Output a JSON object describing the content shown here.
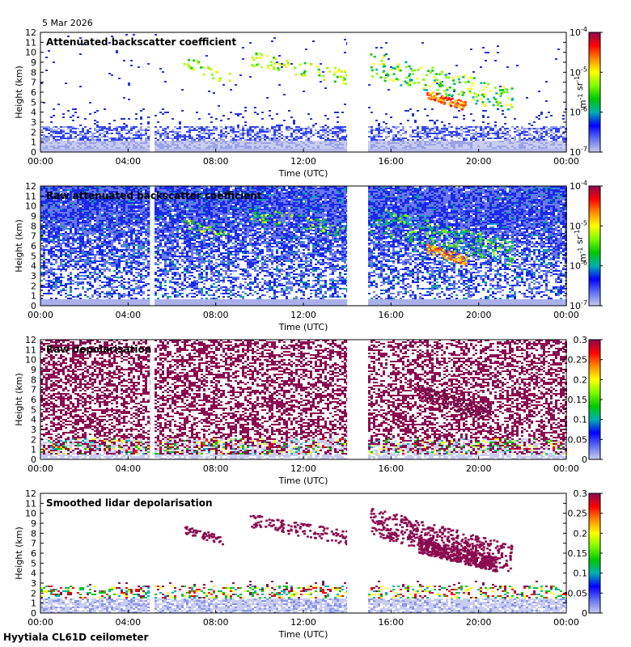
{
  "header": {
    "date": "5 Mar 2026"
  },
  "footer": {
    "site": "Hyytiala CL61D ceilometer"
  },
  "chart_data": [
    {
      "type": "heatmap",
      "title": "Attenuated backscatter coefficient",
      "xlabel": "Time (UTC)",
      "ylabel": "Height (km)",
      "x_ticks": [
        "00:00",
        "04:00",
        "08:00",
        "12:00",
        "16:00",
        "20:00",
        "00:00"
      ],
      "y_ticks": [
        "0",
        "1",
        "2",
        "3",
        "4",
        "5",
        "6",
        "7",
        "8",
        "9",
        "10",
        "11",
        "12"
      ],
      "xlim_hours": [
        0,
        24
      ],
      "ylim": [
        0,
        12
      ],
      "data_gaps_hours": [
        [
          5.0,
          5.2
        ],
        [
          14.0,
          14.9
        ]
      ],
      "colorbar": {
        "scale": "log",
        "range": [
          1e-07,
          0.0001
        ],
        "tick_labels": [
          "10-4",
          "10-5",
          "10-6",
          "10-7"
        ],
        "unit": "m-1 sr-1"
      },
      "features": {
        "cloud_layers": [
          {
            "start_h": 6.5,
            "end_h": 8.6,
            "base_km": 6.9,
            "top_km": 9.8
          },
          {
            "start_h": 9.5,
            "end_h": 14.0,
            "base_km": 6.8,
            "top_km": 10.2
          },
          {
            "start_h": 15.0,
            "end_h": 21.5,
            "base_km": 4.2,
            "top_km": 10.0
          }
        ],
        "boundary_layer_top_km": 2.5
      }
    },
    {
      "type": "heatmap",
      "title": "Raw attenuated backscatter coefficient",
      "xlabel": "Time (UTC)",
      "ylabel": "Height (km)",
      "x_ticks": [
        "00:00",
        "04:00",
        "08:00",
        "12:00",
        "16:00",
        "20:00",
        "00:00"
      ],
      "y_ticks": [
        "0",
        "1",
        "2",
        "3",
        "4",
        "5",
        "6",
        "7",
        "8",
        "9",
        "10",
        "11",
        "12"
      ],
      "xlim_hours": [
        0,
        24
      ],
      "ylim": [
        0,
        12
      ],
      "data_gaps_hours": [
        [
          5.0,
          5.2
        ],
        [
          14.0,
          14.9
        ]
      ],
      "colorbar": {
        "scale": "log",
        "range": [
          1e-07,
          0.0001
        ],
        "tick_labels": [
          "10-4",
          "10-5",
          "10-6",
          "10-7"
        ],
        "unit": "m-1 sr-1"
      }
    },
    {
      "type": "heatmap",
      "title": "Raw depolarisation",
      "xlabel": "Time (UTC)",
      "ylabel": "Height (km)",
      "x_ticks": [
        "00:00",
        "04:00",
        "08:00",
        "12:00",
        "16:00",
        "20:00",
        "00:00"
      ],
      "y_ticks": [
        "0",
        "1",
        "2",
        "3",
        "4",
        "5",
        "6",
        "7",
        "8",
        "9",
        "10",
        "11",
        "12"
      ],
      "xlim_hours": [
        0,
        24
      ],
      "ylim": [
        0,
        12
      ],
      "data_gaps_hours": [
        [
          5.0,
          5.2
        ],
        [
          14.0,
          14.9
        ]
      ],
      "colorbar": {
        "scale": "linear",
        "range": [
          0,
          0.3
        ],
        "tick_labels": [
          "0.3",
          "0.25",
          "0.2",
          "0.15",
          "0.1",
          "0.05",
          "0"
        ]
      }
    },
    {
      "type": "heatmap",
      "title": "Smoothed lidar depolarisation",
      "xlabel": "Time (UTC)",
      "ylabel": "Height (km)",
      "x_ticks": [
        "00:00",
        "04:00",
        "08:00",
        "12:00",
        "16:00",
        "20:00",
        "00:00"
      ],
      "y_ticks": [
        "0",
        "1",
        "2",
        "3",
        "4",
        "5",
        "6",
        "7",
        "8",
        "9",
        "10",
        "11",
        "12"
      ],
      "xlim_hours": [
        0,
        24
      ],
      "ylim": [
        0,
        12
      ],
      "data_gaps_hours": [
        [
          5.0,
          5.2
        ],
        [
          14.0,
          14.9
        ]
      ],
      "colorbar": {
        "scale": "linear",
        "range": [
          0,
          0.3
        ],
        "tick_labels": [
          "0.3",
          "0.25",
          "0.2",
          "0.15",
          "0.1",
          "0.05",
          "0"
        ]
      }
    }
  ]
}
